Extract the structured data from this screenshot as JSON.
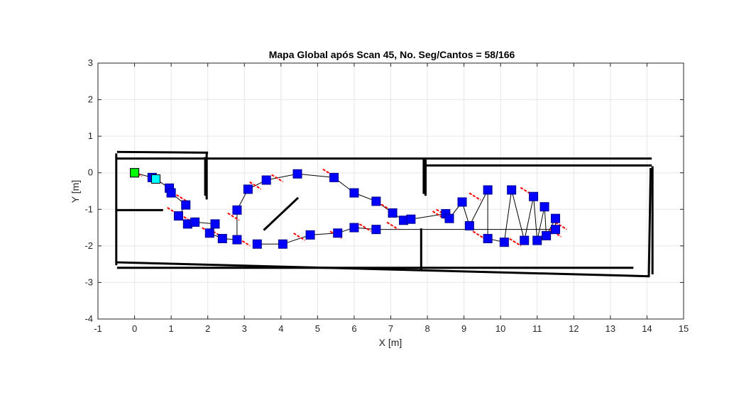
{
  "chart_data": {
    "type": "scatter",
    "title": "Mapa Global após Scan 45, No. Seg/Cantos = 58/166",
    "xlabel": "X [m]",
    "ylabel": "Y [m]",
    "xlim": [
      -1,
      15
    ],
    "ylim": [
      -4,
      3
    ],
    "xticks": [
      -1,
      0,
      1,
      2,
      3,
      4,
      5,
      6,
      7,
      8,
      9,
      10,
      11,
      12,
      13,
      14,
      15
    ],
    "yticks": [
      -4,
      -3,
      -2,
      -1,
      0,
      1,
      2,
      3
    ],
    "grid": true,
    "colors": {
      "pose": "#0000ff",
      "heading": "#ff0000",
      "path": "#000000",
      "walls": "#000000",
      "start": "#00ff00",
      "current": "#00ffff"
    },
    "start_pose": {
      "x": 0.0,
      "y": 0.0
    },
    "current_pose": {
      "x": 0.58,
      "y": -0.17
    },
    "poses": [
      [
        0.0,
        0.0
      ],
      [
        0.48,
        -0.13
      ],
      [
        0.58,
        -0.17
      ],
      [
        0.95,
        -0.42
      ],
      [
        1.0,
        -0.55
      ],
      [
        1.4,
        -0.88
      ],
      [
        1.2,
        -1.18
      ],
      [
        1.45,
        -1.4
      ],
      [
        1.65,
        -1.35
      ],
      [
        2.2,
        -1.4
      ],
      [
        2.05,
        -1.65
      ],
      [
        2.4,
        -1.8
      ],
      [
        2.8,
        -1.83
      ],
      [
        2.8,
        -1.02
      ],
      [
        3.1,
        -0.45
      ],
      [
        3.6,
        -0.2
      ],
      [
        4.45,
        -0.03
      ],
      [
        5.45,
        -0.13
      ],
      [
        6.0,
        -0.55
      ],
      [
        6.6,
        -0.78
      ],
      [
        7.05,
        -1.1
      ],
      [
        7.35,
        -1.3
      ],
      [
        7.55,
        -1.27
      ],
      [
        8.5,
        -1.12
      ],
      [
        8.6,
        -1.25
      ],
      [
        8.95,
        -0.8
      ],
      [
        9.15,
        -1.45
      ],
      [
        9.65,
        -0.47
      ],
      [
        9.65,
        -1.8
      ],
      [
        10.1,
        -1.9
      ],
      [
        10.3,
        -0.47
      ],
      [
        10.65,
        -1.85
      ],
      [
        10.9,
        -0.65
      ],
      [
        11.0,
        -1.85
      ],
      [
        11.2,
        -0.93
      ],
      [
        11.25,
        -1.72
      ],
      [
        11.5,
        -1.25
      ],
      [
        11.5,
        -1.55
      ],
      [
        6.6,
        -1.55
      ],
      [
        6.0,
        -1.5
      ],
      [
        5.55,
        -1.65
      ],
      [
        4.8,
        -1.7
      ],
      [
        4.05,
        -1.95
      ],
      [
        3.35,
        -1.95
      ]
    ],
    "headings": [
      [
        0.05,
        0.0
      ],
      [
        1.3,
        -0.7
      ],
      [
        1.05,
        -1.05
      ],
      [
        1.5,
        -1.3
      ],
      [
        2.3,
        -1.7
      ],
      [
        2.7,
        -1.2
      ],
      [
        3.3,
        -0.35
      ],
      [
        3.9,
        -0.15
      ],
      [
        5.3,
        0.0
      ],
      [
        6.8,
        -0.9
      ],
      [
        8.3,
        -1.15
      ],
      [
        9.3,
        -0.65
      ],
      [
        10.7,
        -0.5
      ],
      [
        11.65,
        -1.45
      ],
      [
        11.5,
        -1.65
      ],
      [
        10.4,
        -1.9
      ],
      [
        9.4,
        -1.7
      ],
      [
        8.4,
        -1.1
      ],
      [
        7.05,
        -1.45
      ],
      [
        6.3,
        -1.5
      ],
      [
        5.5,
        -1.7
      ],
      [
        4.5,
        -1.75
      ],
      [
        3.0,
        -1.9
      ],
      [
        2.0,
        -1.6
      ]
    ],
    "walls": [
      [
        [
          -0.45,
          0.39
        ],
        [
          14.1,
          0.39
        ]
      ],
      [
        [
          -0.45,
          0.57
        ],
        [
          1.98,
          0.55
        ]
      ],
      [
        [
          -0.5,
          0.5
        ],
        [
          -0.5,
          -2.5
        ]
      ],
      [
        [
          -0.45,
          -1.02
        ],
        [
          0.75,
          -1.02
        ]
      ],
      [
        [
          1.97,
          0.55
        ],
        [
          1.97,
          -0.7
        ]
      ],
      [
        [
          1.93,
          0.4
        ],
        [
          1.93,
          -0.6
        ]
      ],
      [
        [
          7.95,
          0.33
        ],
        [
          7.95,
          -0.6
        ]
      ],
      [
        [
          7.9,
          0.35
        ],
        [
          7.9,
          -0.55
        ]
      ],
      [
        [
          7.98,
          0.2
        ],
        [
          14.1,
          0.2
        ]
      ],
      [
        [
          14.15,
          0.15
        ],
        [
          14.15,
          -2.75
        ]
      ],
      [
        [
          14.1,
          0.1
        ],
        [
          14.05,
          -2.8
        ]
      ],
      [
        [
          -0.45,
          -2.45
        ],
        [
          14.05,
          -2.83
        ]
      ],
      [
        [
          -0.45,
          -2.6
        ],
        [
          13.6,
          -2.6
        ]
      ],
      [
        [
          7.83,
          -1.55
        ],
        [
          7.83,
          -2.65
        ]
      ],
      [
        [
          3.55,
          -1.55
        ],
        [
          4.45,
          -0.7
        ]
      ]
    ]
  }
}
